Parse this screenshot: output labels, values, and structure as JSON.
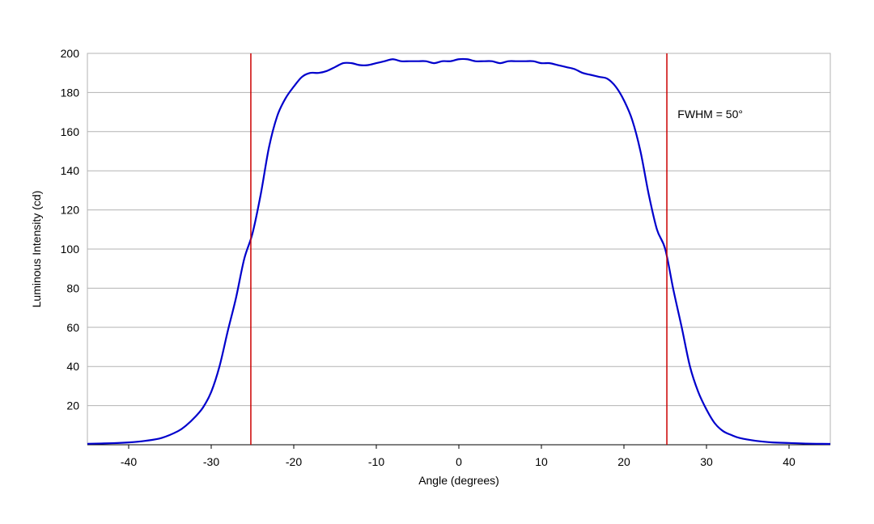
{
  "chart_data": {
    "type": "line",
    "title": "",
    "xlabel": "Angle (degrees)",
    "ylabel": "Luminous Intensity (cd)",
    "xlim": [
      -45,
      45
    ],
    "ylim": [
      0,
      200
    ],
    "xticks": [
      -40,
      -30,
      -20,
      -10,
      0,
      10,
      20,
      30,
      40
    ],
    "yticks": [
      20,
      40,
      60,
      80,
      100,
      120,
      140,
      160,
      180,
      200
    ],
    "xtick_labels": [
      "-40",
      "-30",
      "-20",
      "-10",
      "0",
      "10",
      "20",
      "30",
      "40"
    ],
    "ytick_labels": [
      "20",
      "40",
      "60",
      "80",
      "100",
      "120",
      "140",
      "160",
      "180",
      "200"
    ],
    "grid": {
      "horizontal": true,
      "vertical": false
    },
    "legend": "none",
    "colors": {
      "curve": "#0000cc",
      "markers": "#cc0000",
      "grid": "#b3b3b3",
      "frame": "#b3b3b3"
    },
    "series": [
      {
        "x": [
          -45,
          -42,
          -40,
          -38,
          -36,
          -34,
          -33,
          -32,
          -31,
          -30,
          -29,
          -28,
          -27,
          -26,
          -25,
          -24,
          -23,
          -22,
          -21,
          -20,
          -19,
          -18,
          -17,
          -16,
          -15,
          -14,
          -13,
          -12,
          -11,
          -10,
          -9,
          -8,
          -7,
          -6,
          -5,
          -4,
          -3,
          -2,
          -1,
          0,
          1,
          2,
          3,
          4,
          5,
          6,
          7,
          8,
          9,
          10,
          11,
          12,
          13,
          14,
          15,
          16,
          17,
          18,
          19,
          20,
          21,
          22,
          23,
          24,
          25,
          26,
          27,
          28,
          29,
          30,
          31,
          32,
          33,
          34,
          36,
          38,
          40,
          42,
          45
        ],
        "y": [
          0.5,
          0.8,
          1.2,
          2,
          3.5,
          7,
          10,
          14,
          19,
          27,
          40,
          58,
          75,
          95,
          108,
          128,
          152,
          168,
          177,
          183,
          188,
          190,
          190,
          191,
          193,
          195,
          195,
          194,
          194,
          195,
          196,
          197,
          196,
          196,
          196,
          196,
          195,
          196,
          196,
          197,
          197,
          196,
          196,
          196,
          195,
          196,
          196,
          196,
          196,
          195,
          195,
          194,
          193,
          192,
          190,
          189,
          188,
          187,
          183,
          176,
          166,
          150,
          128,
          110,
          100,
          79,
          60,
          40,
          27,
          18,
          11,
          7,
          5,
          3.5,
          2,
          1.2,
          0.9,
          0.6,
          0.4
        ]
      }
    ],
    "vlines": [
      -25.2,
      25.2
    ],
    "annotation": {
      "text": "FWHM = 50°",
      "x": 26.5,
      "y": 169
    }
  }
}
